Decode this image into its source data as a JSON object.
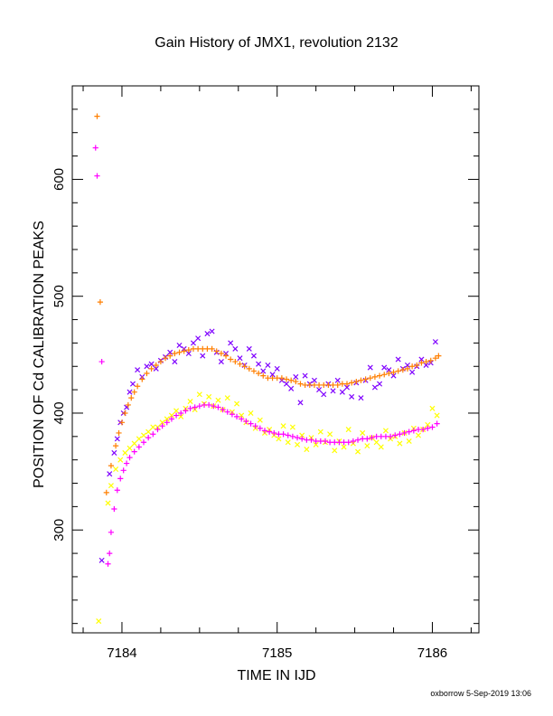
{
  "chart_data": {
    "type": "scatter",
    "title": "Gain History of JMX1, revolution 2132",
    "xlabel": "TIME IN IJD",
    "ylabel": "POSITION OF Cd CALIBRATION PEAKS",
    "xlim": [
      7183.68,
      7186.3
    ],
    "ylim": [
      212,
      680
    ],
    "x_ticks": [
      7184,
      7185,
      7186
    ],
    "x_minor_ticks": [
      7183.75,
      7184.25,
      7184.5,
      7184.75,
      7185.25,
      7185.5,
      7185.75,
      7186.25
    ],
    "y_ticks": [
      300,
      400,
      500,
      600
    ],
    "grid": false,
    "legend": "none",
    "series": [
      {
        "marker": "x",
        "color": "#7f00ff",
        "x": [
          7183.87,
          7183.92,
          7183.95,
          7183.97,
          7183.99,
          7184.01,
          7184.03,
          7184.05,
          7184.07,
          7184.1,
          7184.13,
          7184.16,
          7184.19,
          7184.22,
          7184.25,
          7184.28,
          7184.31,
          7184.34,
          7184.37,
          7184.4,
          7184.43,
          7184.46,
          7184.49,
          7184.52,
          7184.55,
          7184.58,
          7184.61,
          7184.64,
          7184.67,
          7184.7,
          7184.73,
          7184.76,
          7184.79,
          7184.82,
          7184.85,
          7184.88,
          7184.91,
          7184.94,
          7184.97,
          7185.0,
          7185.03,
          7185.06,
          7185.09,
          7185.12,
          7185.15,
          7185.18,
          7185.21,
          7185.24,
          7185.27,
          7185.3,
          7185.33,
          7185.36,
          7185.39,
          7185.42,
          7185.45,
          7185.48,
          7185.51,
          7185.54,
          7185.57,
          7185.6,
          7185.63,
          7185.66,
          7185.69,
          7185.72,
          7185.75,
          7185.78,
          7185.81,
          7185.84,
          7185.87,
          7185.9,
          7185.93,
          7185.96,
          7185.99,
          7186.02
        ],
        "y": [
          274,
          348,
          366,
          378,
          392,
          400,
          405,
          418,
          425,
          437,
          431,
          440,
          442,
          438,
          445,
          448,
          452,
          444,
          458,
          455,
          451,
          460,
          464,
          449,
          468,
          470,
          452,
          444,
          451,
          460,
          455,
          447,
          441,
          455,
          449,
          442,
          436,
          441,
          433,
          438,
          428,
          425,
          421,
          431,
          409,
          432,
          425,
          428,
          420,
          416,
          425,
          419,
          428,
          418,
          422,
          414,
          426,
          413,
          428,
          439,
          422,
          425,
          439,
          437,
          432,
          446,
          438,
          441,
          435,
          440,
          446,
          441,
          443,
          461
        ]
      },
      {
        "marker": "+",
        "color": "#ff7f00",
        "x": [
          7183.84,
          7183.86,
          7183.9,
          7183.93,
          7183.96,
          7183.98,
          7184.0,
          7184.02,
          7184.04,
          7184.06,
          7184.08,
          7184.1,
          7184.13,
          7184.16,
          7184.19,
          7184.22,
          7184.25,
          7184.28,
          7184.31,
          7184.34,
          7184.37,
          7184.4,
          7184.43,
          7184.46,
          7184.49,
          7184.52,
          7184.55,
          7184.58,
          7184.61,
          7184.64,
          7184.67,
          7184.7,
          7184.73,
          7184.76,
          7184.79,
          7184.82,
          7184.85,
          7184.88,
          7184.91,
          7184.94,
          7184.97,
          7185.0,
          7185.03,
          7185.06,
          7185.09,
          7185.12,
          7185.15,
          7185.18,
          7185.21,
          7185.24,
          7185.27,
          7185.3,
          7185.33,
          7185.36,
          7185.39,
          7185.42,
          7185.45,
          7185.48,
          7185.51,
          7185.54,
          7185.57,
          7185.6,
          7185.63,
          7185.66,
          7185.69,
          7185.72,
          7185.75,
          7185.78,
          7185.81,
          7185.84,
          7185.87,
          7185.9,
          7185.93,
          7185.96,
          7185.99,
          7186.02,
          7186.04
        ],
        "y": [
          654,
          495,
          332,
          355,
          372,
          383,
          392,
          400,
          407,
          413,
          418,
          423,
          429,
          434,
          438,
          441,
          444,
          447,
          449,
          451,
          452,
          453,
          454,
          455,
          455,
          455,
          455,
          455,
          453,
          451,
          449,
          446,
          444,
          442,
          440,
          438,
          436,
          434,
          432,
          430,
          430,
          430,
          430,
          429,
          428,
          427,
          425,
          424,
          424,
          424,
          424,
          424,
          424,
          424,
          424,
          425,
          425,
          426,
          427,
          428,
          429,
          430,
          431,
          432,
          433,
          434,
          435,
          436,
          437,
          438,
          440,
          441,
          443,
          444,
          445,
          447,
          449
        ]
      },
      {
        "marker": "x",
        "color": "#ffff00",
        "x": [
          7183.85,
          7183.91,
          7183.93,
          7183.96,
          7183.99,
          7184.02,
          7184.05,
          7184.08,
          7184.11,
          7184.14,
          7184.17,
          7184.2,
          7184.23,
          7184.26,
          7184.29,
          7184.32,
          7184.35,
          7184.38,
          7184.41,
          7184.44,
          7184.47,
          7184.5,
          7184.53,
          7184.56,
          7184.59,
          7184.62,
          7184.65,
          7184.68,
          7184.71,
          7184.74,
          7184.77,
          7184.8,
          7184.83,
          7184.86,
          7184.89,
          7184.92,
          7184.95,
          7184.98,
          7185.01,
          7185.04,
          7185.07,
          7185.1,
          7185.13,
          7185.16,
          7185.19,
          7185.22,
          7185.25,
          7185.28,
          7185.31,
          7185.34,
          7185.37,
          7185.4,
          7185.43,
          7185.46,
          7185.49,
          7185.52,
          7185.55,
          7185.58,
          7185.61,
          7185.64,
          7185.67,
          7185.7,
          7185.73,
          7185.76,
          7185.79,
          7185.82,
          7185.85,
          7185.88,
          7185.91,
          7185.94,
          7185.97,
          7186.0,
          7186.03
        ],
        "y": [
          222,
          323,
          338,
          352,
          360,
          366,
          370,
          374,
          378,
          381,
          384,
          388,
          388,
          392,
          395,
          398,
          402,
          397,
          404,
          410,
          403,
          416,
          408,
          414,
          406,
          411,
          403,
          413,
          401,
          408,
          398,
          392,
          400,
          387,
          394,
          383,
          386,
          381,
          378,
          389,
          375,
          388,
          373,
          381,
          369,
          379,
          373,
          384,
          375,
          382,
          368,
          376,
          371,
          386,
          374,
          367,
          383,
          372,
          379,
          375,
          371,
          385,
          378,
          380,
          374,
          383,
          376,
          387,
          381,
          386,
          390,
          404,
          398
        ]
      },
      {
        "marker": "+",
        "color": "#ff00ff",
        "x": [
          7183.83,
          7183.84,
          7183.87,
          7183.91,
          7183.92,
          7183.93,
          7183.95,
          7183.97,
          7183.99,
          7184.01,
          7184.03,
          7184.05,
          7184.08,
          7184.11,
          7184.14,
          7184.17,
          7184.2,
          7184.23,
          7184.26,
          7184.29,
          7184.32,
          7184.35,
          7184.38,
          7184.41,
          7184.44,
          7184.47,
          7184.5,
          7184.53,
          7184.56,
          7184.59,
          7184.62,
          7184.65,
          7184.68,
          7184.71,
          7184.74,
          7184.77,
          7184.8,
          7184.83,
          7184.86,
          7184.89,
          7184.92,
          7184.95,
          7184.98,
          7185.01,
          7185.04,
          7185.07,
          7185.1,
          7185.13,
          7185.16,
          7185.19,
          7185.22,
          7185.25,
          7185.28,
          7185.31,
          7185.34,
          7185.37,
          7185.4,
          7185.43,
          7185.46,
          7185.49,
          7185.52,
          7185.55,
          7185.58,
          7185.61,
          7185.64,
          7185.67,
          7185.7,
          7185.73,
          7185.76,
          7185.79,
          7185.82,
          7185.85,
          7185.88,
          7185.91,
          7185.94,
          7185.97,
          7186.0,
          7186.03
        ],
        "y": [
          627,
          603,
          444,
          271,
          280,
          298,
          318,
          334,
          344,
          351,
          357,
          362,
          367,
          371,
          375,
          379,
          382,
          386,
          389,
          392,
          395,
          398,
          400,
          402,
          404,
          405,
          406,
          407,
          407,
          406,
          405,
          403,
          401,
          399,
          397,
          395,
          393,
          391,
          389,
          387,
          385,
          384,
          383,
          382,
          382,
          381,
          380,
          379,
          378,
          377,
          377,
          376,
          376,
          376,
          375,
          375,
          375,
          375,
          375,
          376,
          377,
          378,
          378,
          379,
          380,
          380,
          380,
          380,
          381,
          382,
          383,
          384,
          385,
          386,
          386,
          387,
          388,
          391
        ]
      }
    ]
  },
  "footer": {
    "credit": "oxborrow  5-Sep-2019 13:06"
  }
}
